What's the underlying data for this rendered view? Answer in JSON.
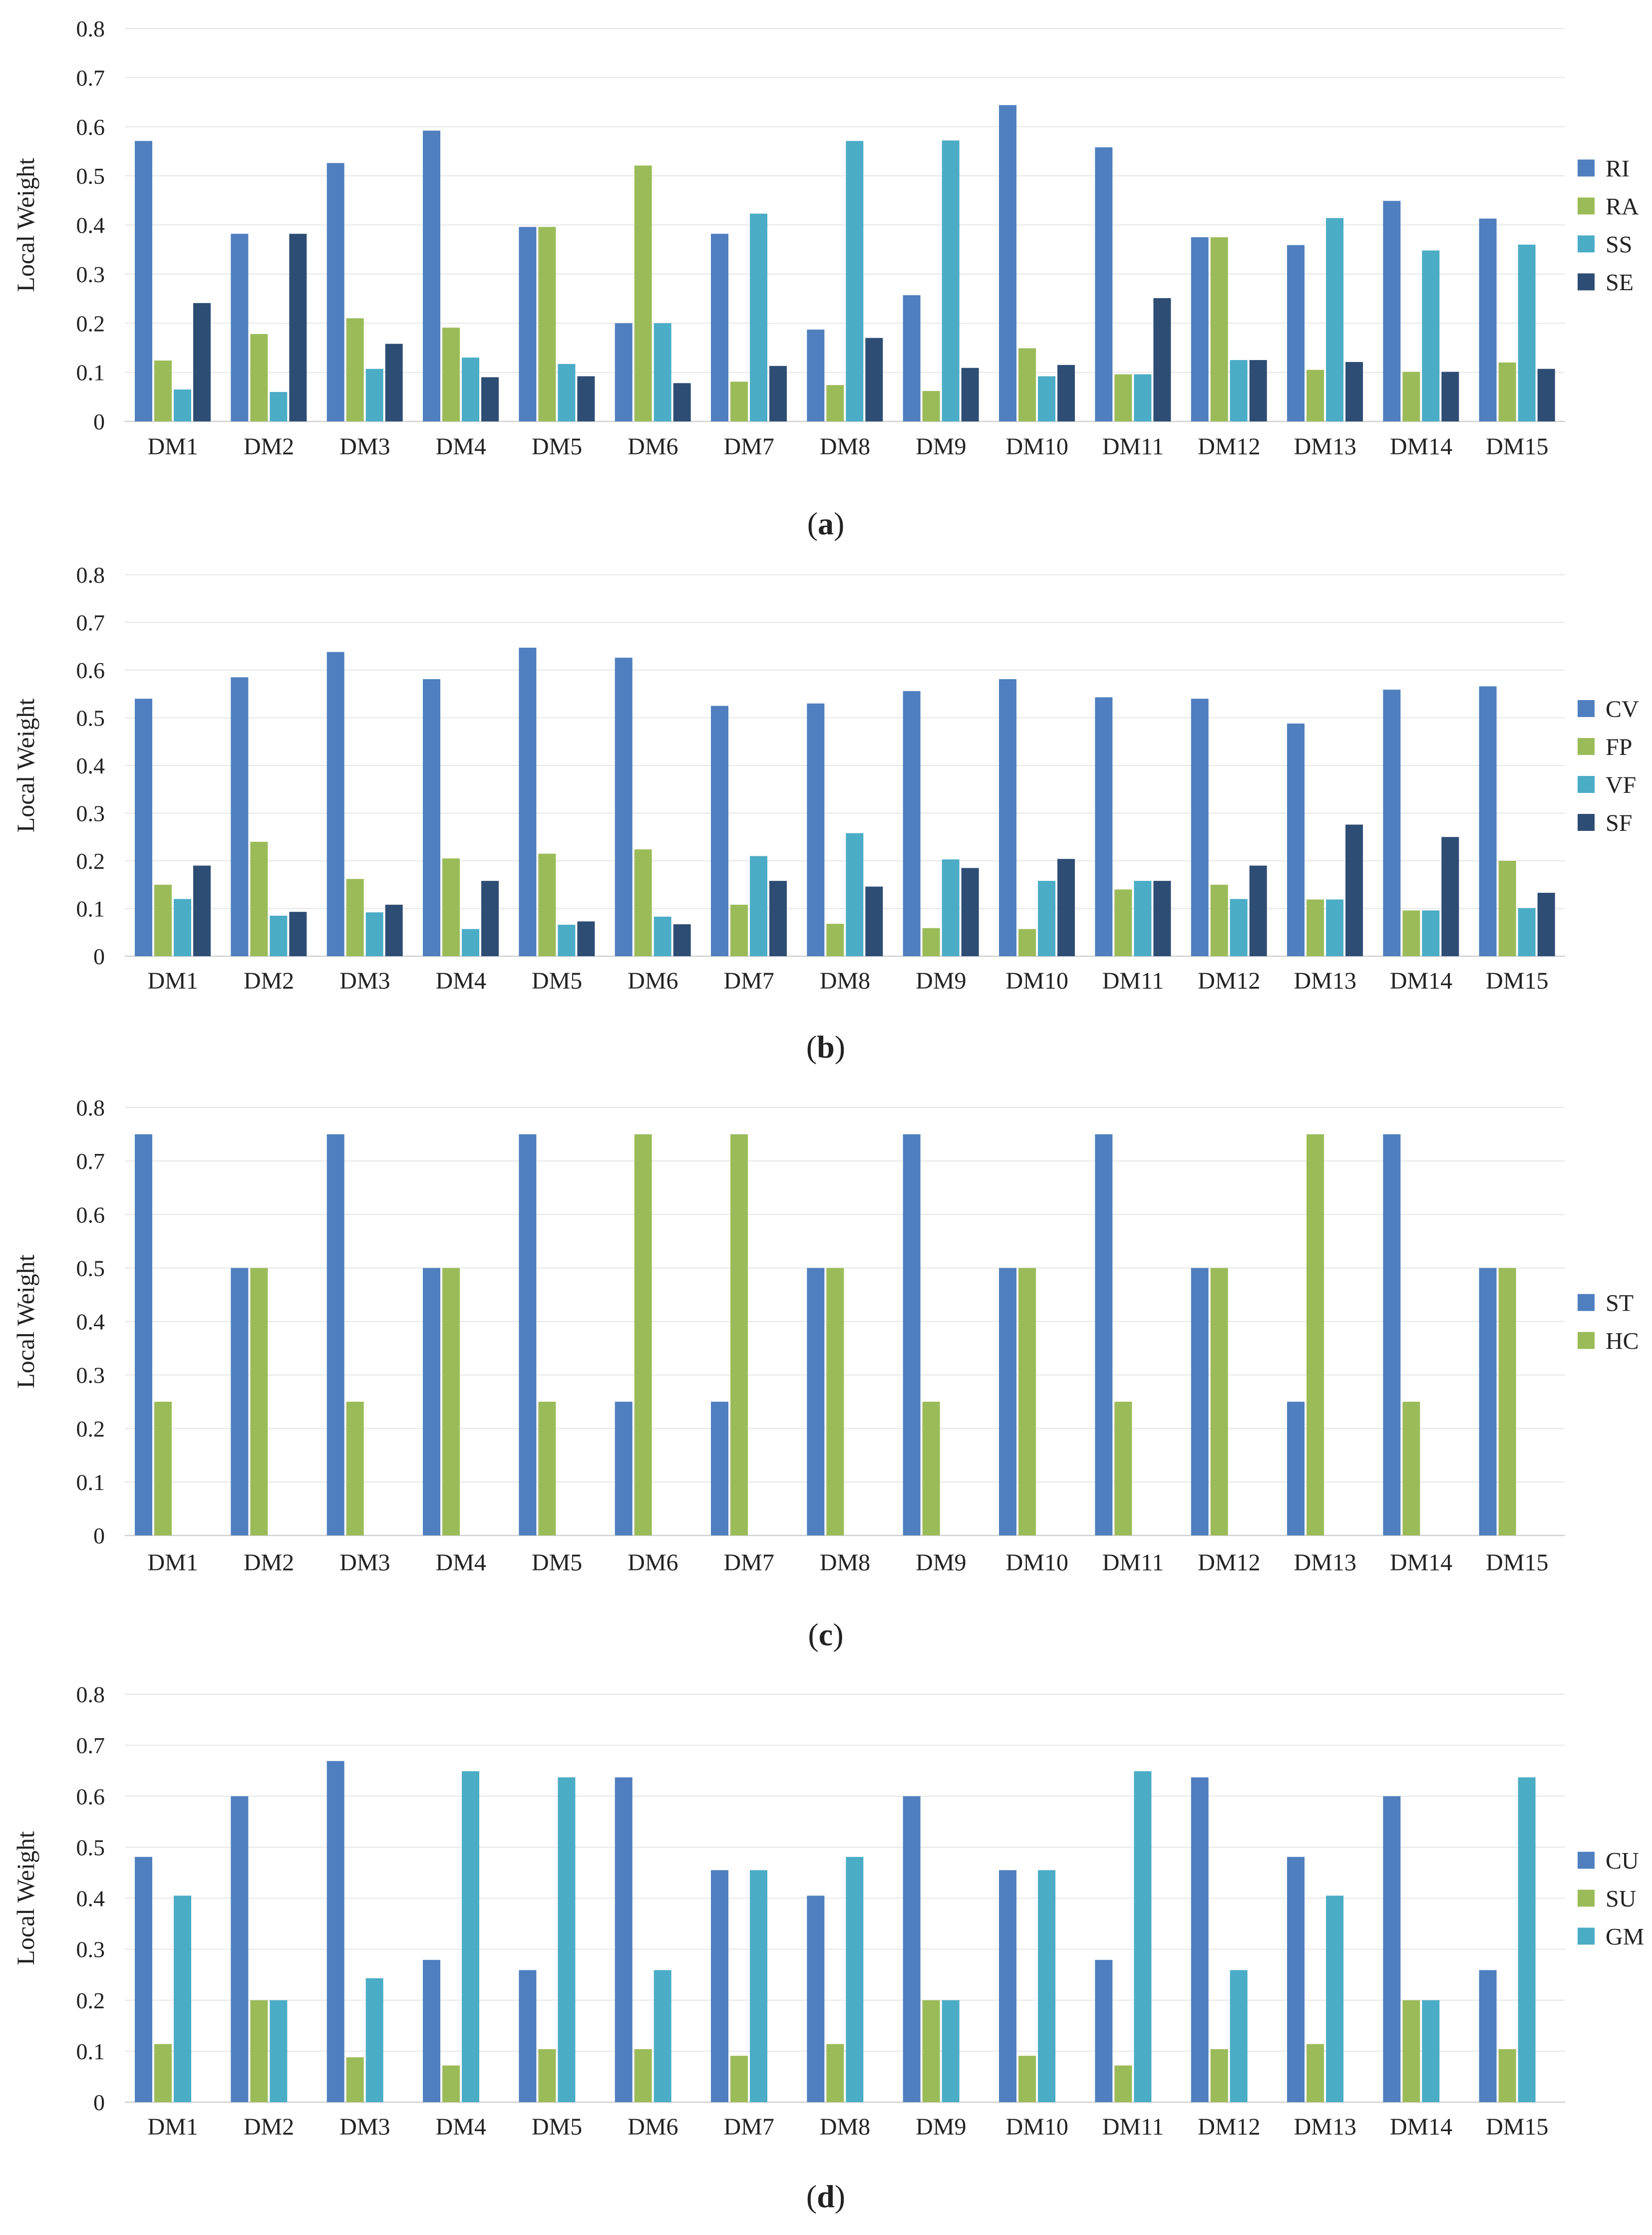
{
  "chart_data": [
    {
      "panel": "a",
      "type": "bar",
      "caption_letter": "a",
      "ylabel": "Local Weight",
      "ylim": [
        0,
        0.8
      ],
      "yticks": [
        "0",
        "0.1",
        "0.2",
        "0.3",
        "0.4",
        "0.5",
        "0.6",
        "0.7",
        "0.8"
      ],
      "categories": [
        "DM1",
        "DM2",
        "DM3",
        "DM4",
        "DM5",
        "DM6",
        "DM7",
        "DM8",
        "DM9",
        "DM10",
        "DM11",
        "DM12",
        "DM13",
        "DM14",
        "DM15"
      ],
      "legend_position": "right",
      "series": [
        {
          "name": "RI",
          "color": "#4f7fbf",
          "values": [
            0.571,
            0.382,
            0.526,
            0.592,
            0.396,
            0.2,
            0.382,
            0.187,
            0.257,
            0.644,
            0.558,
            0.375,
            0.359,
            0.449,
            0.413
          ]
        },
        {
          "name": "RA",
          "color": "#9bbb59",
          "values": [
            0.124,
            0.178,
            0.21,
            0.191,
            0.396,
            0.521,
            0.081,
            0.074,
            0.062,
            0.149,
            0.096,
            0.375,
            0.105,
            0.101,
            0.12
          ]
        },
        {
          "name": "SS",
          "color": "#4bacc6",
          "values": [
            0.065,
            0.06,
            0.107,
            0.13,
            0.117,
            0.2,
            0.423,
            0.571,
            0.572,
            0.092,
            0.096,
            0.125,
            0.414,
            0.348,
            0.36
          ]
        },
        {
          "name": "SE",
          "color": "#2e4d74",
          "values": [
            0.241,
            0.382,
            0.158,
            0.09,
            0.092,
            0.078,
            0.113,
            0.17,
            0.109,
            0.115,
            0.251,
            0.125,
            0.121,
            0.101,
            0.107
          ]
        }
      ]
    },
    {
      "panel": "b",
      "type": "bar",
      "caption_letter": "b",
      "ylabel": "Local Weight",
      "ylim": [
        0,
        0.8
      ],
      "yticks": [
        "0",
        "0.1",
        "0.2",
        "0.3",
        "0.4",
        "0.5",
        "0.6",
        "0.7",
        "0.8"
      ],
      "categories": [
        "DM1",
        "DM2",
        "DM3",
        "DM4",
        "DM5",
        "DM6",
        "DM7",
        "DM8",
        "DM9",
        "DM10",
        "DM11",
        "DM12",
        "DM13",
        "DM14",
        "DM15"
      ],
      "legend_position": "right",
      "series": [
        {
          "name": "CV",
          "color": "#4f7fbf",
          "values": [
            0.54,
            0.585,
            0.638,
            0.581,
            0.647,
            0.626,
            0.525,
            0.53,
            0.556,
            0.581,
            0.543,
            0.54,
            0.488,
            0.559,
            0.566
          ]
        },
        {
          "name": "FP",
          "color": "#9bbb59",
          "values": [
            0.15,
            0.24,
            0.162,
            0.205,
            0.215,
            0.224,
            0.108,
            0.068,
            0.059,
            0.057,
            0.14,
            0.15,
            0.119,
            0.096,
            0.2
          ]
        },
        {
          "name": "VF",
          "color": "#4bacc6",
          "values": [
            0.12,
            0.085,
            0.092,
            0.057,
            0.066,
            0.083,
            0.21,
            0.258,
            0.203,
            0.158,
            0.158,
            0.12,
            0.119,
            0.096,
            0.101
          ]
        },
        {
          "name": "SF",
          "color": "#2e4d74",
          "values": [
            0.19,
            0.093,
            0.108,
            0.158,
            0.073,
            0.067,
            0.158,
            0.146,
            0.185,
            0.204,
            0.158,
            0.19,
            0.276,
            0.25,
            0.133
          ]
        }
      ]
    },
    {
      "panel": "c",
      "type": "bar",
      "caption_letter": "c",
      "ylabel": "Local Weight",
      "ylim": [
        0,
        0.8
      ],
      "yticks": [
        "0",
        "0.1",
        "0.2",
        "0.3",
        "0.4",
        "0.5",
        "0.6",
        "0.7",
        "0.8"
      ],
      "categories": [
        "DM1",
        "DM2",
        "DM3",
        "DM4",
        "DM5",
        "DM6",
        "DM7",
        "DM8",
        "DM9",
        "DM10",
        "DM11",
        "DM12",
        "DM13",
        "DM14",
        "DM15"
      ],
      "legend_position": "right",
      "series": [
        {
          "name": "ST",
          "color": "#4f7fbf",
          "values": [
            0.75,
            0.5,
            0.75,
            0.5,
            0.75,
            0.25,
            0.25,
            0.5,
            0.75,
            0.5,
            0.75,
            0.5,
            0.25,
            0.75,
            0.5
          ]
        },
        {
          "name": "HC",
          "color": "#9bbb59",
          "values": [
            0.25,
            0.5,
            0.25,
            0.5,
            0.25,
            0.75,
            0.75,
            0.5,
            0.25,
            0.5,
            0.25,
            0.5,
            0.75,
            0.25,
            0.5
          ]
        }
      ]
    },
    {
      "panel": "d",
      "type": "bar",
      "caption_letter": "d",
      "ylabel": "Local Weight",
      "ylim": [
        0,
        0.8
      ],
      "yticks": [
        "0",
        "0.1",
        "0.2",
        "0.3",
        "0.4",
        "0.5",
        "0.6",
        "0.7",
        "0.8"
      ],
      "categories": [
        "DM1",
        "DM2",
        "DM3",
        "DM4",
        "DM5",
        "DM6",
        "DM7",
        "DM8",
        "DM9",
        "DM10",
        "DM11",
        "DM12",
        "DM13",
        "DM14",
        "DM15"
      ],
      "legend_position": "right",
      "series": [
        {
          "name": "CU",
          "color": "#4f7fbf",
          "values": [
            0.481,
            0.6,
            0.669,
            0.279,
            0.259,
            0.637,
            0.455,
            0.405,
            0.6,
            0.455,
            0.279,
            0.637,
            0.481,
            0.6,
            0.259
          ]
        },
        {
          "name": "SU",
          "color": "#9bbb59",
          "values": [
            0.114,
            0.2,
            0.088,
            0.072,
            0.104,
            0.104,
            0.091,
            0.114,
            0.2,
            0.091,
            0.072,
            0.104,
            0.114,
            0.2,
            0.104
          ]
        },
        {
          "name": "GM",
          "color": "#4bacc6",
          "values": [
            0.405,
            0.2,
            0.243,
            0.649,
            0.637,
            0.259,
            0.455,
            0.481,
            0.2,
            0.455,
            0.649,
            0.259,
            0.405,
            0.2,
            0.637
          ]
        }
      ]
    }
  ]
}
